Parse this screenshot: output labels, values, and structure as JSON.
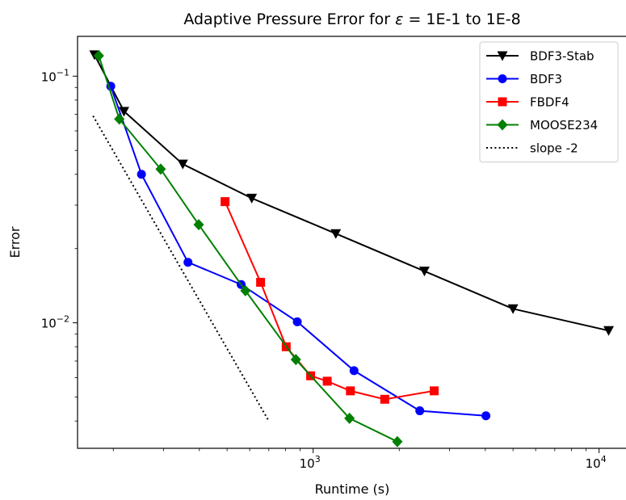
{
  "chart_data": {
    "type": "line",
    "title": "Adaptive Pressure Error for ε = 1E-1 to 1E-8",
    "xlabel": "Runtime (s)",
    "ylabel": "Error",
    "xscale": "log",
    "yscale": "log",
    "xlim": [
      150,
      12500
    ],
    "ylim": [
      0.0031,
      0.145
    ],
    "x_ticks": [
      {
        "value": 1000,
        "label": "10",
        "exp": "3"
      },
      {
        "value": 10000,
        "label": "10",
        "exp": "4"
      }
    ],
    "y_ticks": [
      {
        "value": 0.1,
        "label": "10",
        "exp": "−1"
      },
      {
        "value": 0.01,
        "label": "10",
        "exp": "−2"
      }
    ],
    "grid": false,
    "legend_position": "top-right",
    "series": [
      {
        "name": "BDF3-Stab",
        "color": "#000000",
        "marker": "triangle-down",
        "style": "solid",
        "points": [
          [
            172,
            0.122
          ],
          [
            218,
            0.072
          ],
          [
            350,
            0.044
          ],
          [
            610,
            0.032
          ],
          [
            1200,
            0.023
          ],
          [
            2450,
            0.0162
          ],
          [
            5000,
            0.0114
          ],
          [
            10800,
            0.0093
          ]
        ]
      },
      {
        "name": "BDF3",
        "color": "#0000ff",
        "marker": "circle",
        "style": "solid",
        "points": [
          [
            196,
            0.091
          ],
          [
            251,
            0.04
          ],
          [
            365,
            0.0176
          ],
          [
            560,
            0.0143
          ],
          [
            880,
            0.0101
          ],
          [
            1390,
            0.0064
          ],
          [
            2360,
            0.0044
          ],
          [
            4020,
            0.0042
          ]
        ]
      },
      {
        "name": "FBDF4",
        "color": "#ff0000",
        "marker": "square",
        "style": "solid",
        "points": [
          [
            492,
            0.031
          ],
          [
            655,
            0.0146
          ],
          [
            805,
            0.008
          ],
          [
            980,
            0.0061
          ],
          [
            1120,
            0.0058
          ],
          [
            1350,
            0.0053
          ],
          [
            1780,
            0.0049
          ],
          [
            2650,
            0.0053
          ]
        ]
      },
      {
        "name": "MOOSE234",
        "color": "#008000",
        "marker": "diamond",
        "style": "solid",
        "points": [
          [
            178,
            0.121
          ],
          [
            210,
            0.067
          ],
          [
            293,
            0.042
          ],
          [
            398,
            0.025
          ],
          [
            580,
            0.0135
          ],
          [
            870,
            0.0071
          ],
          [
            1340,
            0.0041
          ],
          [
            1970,
            0.0033
          ]
        ]
      },
      {
        "name": "slope -2",
        "color": "#000000",
        "marker": "none",
        "style": "dotted",
        "points": [
          [
            170,
            0.069
          ],
          [
            700,
            0.004
          ]
        ]
      }
    ]
  }
}
